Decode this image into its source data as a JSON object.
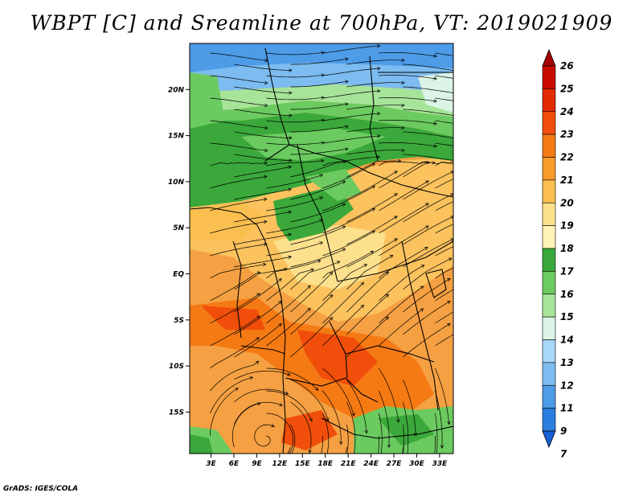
{
  "title": "WBPT [C] and Sreamline at 700hPa, VT: 2019021909",
  "credit": "GrADS: IGES/COLA",
  "map": {
    "lat_ticks": [
      "20N",
      "15N",
      "10N",
      "5N",
      "EQ",
      "5S",
      "10S",
      "15S"
    ],
    "lon_ticks": [
      "3E",
      "6E",
      "9E",
      "12E",
      "15E",
      "18E",
      "21E",
      "24E",
      "27E",
      "30E",
      "33E"
    ],
    "lat_range": [
      -19.5,
      25
    ],
    "lon_range": [
      0.2,
      34.8
    ]
  },
  "colorbar": {
    "labels": [
      "26",
      "25",
      "24",
      "23",
      "22",
      "21",
      "20",
      "19",
      "18",
      "17",
      "16",
      "15",
      "14",
      "13",
      "12",
      "11",
      "9",
      "7"
    ],
    "colors": [
      "#a50000",
      "#c80a00",
      "#e32a00",
      "#f04e0a",
      "#f57a14",
      "#f89b2a",
      "#fbbf4f",
      "#fde08c",
      "#fff3b8",
      "#3aa83a",
      "#6ccb60",
      "#a6e49a",
      "#dcf4e6",
      "#a8d8f8",
      "#7cbcf0",
      "#4e9ce8",
      "#2a7ee0",
      "#1660d4"
    ]
  }
}
